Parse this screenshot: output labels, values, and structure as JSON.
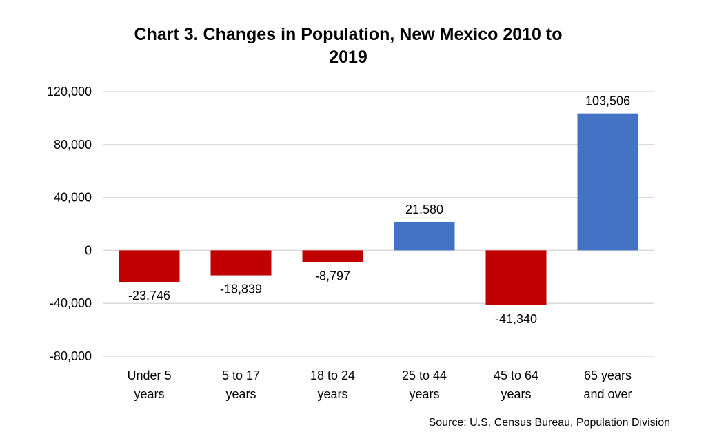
{
  "chart_data": {
    "type": "bar",
    "title": "Chart 3. Changes in Population, New Mexico 2010 to 2019",
    "title_lines": [
      "Chart 3. Changes in Population, New Mexico 2010 to",
      "2019"
    ],
    "categories": [
      "Under 5 years",
      "5 to 17 years",
      "18 to 24 years",
      "25 to 44 years",
      "45 to 64 years",
      "65 years and over"
    ],
    "category_lines": [
      [
        "Under 5",
        "years"
      ],
      [
        "5 to 17",
        "years"
      ],
      [
        "18 to 24",
        "years"
      ],
      [
        "25 to 44",
        "years"
      ],
      [
        "45 to 64",
        "years"
      ],
      [
        "65 years",
        "and over"
      ]
    ],
    "values": [
      -23746,
      -18839,
      -8797,
      21580,
      -41340,
      103506
    ],
    "data_labels": [
      "-23,746",
      "-18,839",
      "-8,797",
      "21,580",
      "-41,340",
      "103,506"
    ],
    "ylim": [
      -80000,
      120000
    ],
    "yticks": [
      -80000,
      -40000,
      0,
      40000,
      80000,
      120000
    ],
    "ytick_labels": [
      "-80,000",
      "-40,000",
      "0",
      "40,000",
      "80,000",
      "120,000"
    ],
    "xlabel": "",
    "ylabel": "",
    "grid": true,
    "colors": {
      "positive": "#4472C4",
      "negative": "#C00000",
      "grid": "#D9D9D9"
    },
    "source": "Source: U.S. Census Bureau, Population Division"
  }
}
